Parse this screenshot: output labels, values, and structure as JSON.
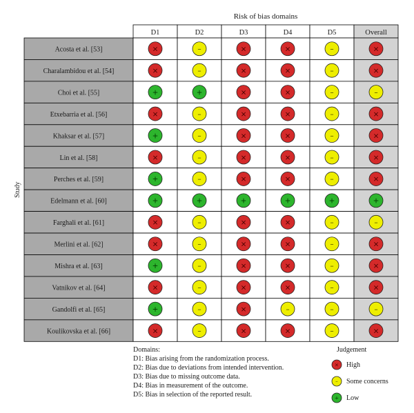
{
  "header": {
    "title": "Risk of bias domains",
    "columns": [
      "D1",
      "D2",
      "D3",
      "D4",
      "D5",
      "Overall"
    ]
  },
  "y_axis_label": "Study",
  "studies": [
    {
      "name": "Acosta et al. [53]",
      "judgements": [
        "high",
        "some",
        "high",
        "high",
        "some",
        "high"
      ]
    },
    {
      "name": "Charalambidou et al. [54]",
      "judgements": [
        "high",
        "some",
        "high",
        "high",
        "some",
        "high"
      ]
    },
    {
      "name": "Choi et al. [55]",
      "judgements": [
        "low",
        "low",
        "high",
        "high",
        "some",
        "some"
      ]
    },
    {
      "name": "Etxebarria et al. [56]",
      "judgements": [
        "high",
        "some",
        "high",
        "high",
        "some",
        "high"
      ]
    },
    {
      "name": "Khaksar et al. [57]",
      "judgements": [
        "low",
        "some",
        "high",
        "high",
        "some",
        "high"
      ]
    },
    {
      "name": "Lin et al. [58]",
      "judgements": [
        "high",
        "some",
        "high",
        "high",
        "some",
        "high"
      ]
    },
    {
      "name": "Perches et al. [59]",
      "judgements": [
        "low",
        "some",
        "high",
        "high",
        "some",
        "high"
      ]
    },
    {
      "name": "Edelmann et al. [60]",
      "judgements": [
        "low",
        "low",
        "low",
        "low",
        "low",
        "low"
      ]
    },
    {
      "name": "Farghali et al. [61]",
      "judgements": [
        "high",
        "some",
        "high",
        "high",
        "some",
        "some"
      ]
    },
    {
      "name": "Merlini et al. [62]",
      "judgements": [
        "high",
        "some",
        "high",
        "high",
        "some",
        "high"
      ]
    },
    {
      "name": "Mishra et al. [63]",
      "judgements": [
        "low",
        "some",
        "high",
        "high",
        "some",
        "high"
      ]
    },
    {
      "name": "Vatnikov et al. [64]",
      "judgements": [
        "high",
        "some",
        "high",
        "high",
        "some",
        "high"
      ]
    },
    {
      "name": "Gandolfi et al. [65]",
      "judgements": [
        "low",
        "some",
        "high",
        "some",
        "some",
        "some"
      ]
    },
    {
      "name": "Koulikovska et al. [66]",
      "judgements": [
        "high",
        "some",
        "high",
        "high",
        "some",
        "high"
      ]
    }
  ],
  "domains_legend": {
    "title": "Domains:",
    "items": [
      "D1: Bias arising from the randomization process.",
      "D2: Bias due to deviations from intended intervention.",
      "D3: Bias due to missing outcome data.",
      "D4: Bias in measurement of the outcome.",
      "D5: Bias in selection of the reported result."
    ]
  },
  "judgement_legend": {
    "title": "Judgement",
    "items": [
      {
        "key": "high",
        "label": "High"
      },
      {
        "key": "some",
        "label": "Some concerns"
      },
      {
        "key": "low",
        "label": "Low"
      }
    ]
  },
  "symbols": {
    "high": {
      "glyph": "×",
      "fill": "#d42a2a",
      "color": "#4a0000"
    },
    "some": {
      "glyph": "–",
      "fill": "#eeee00",
      "color": "#4a4a00"
    },
    "low": {
      "glyph": "+",
      "fill": "#2db52d",
      "color": "#003a00"
    }
  },
  "colors": {
    "label_bg": "#a9a9a9",
    "overall_bg": "#d3d3d3",
    "grid": "#000000"
  }
}
